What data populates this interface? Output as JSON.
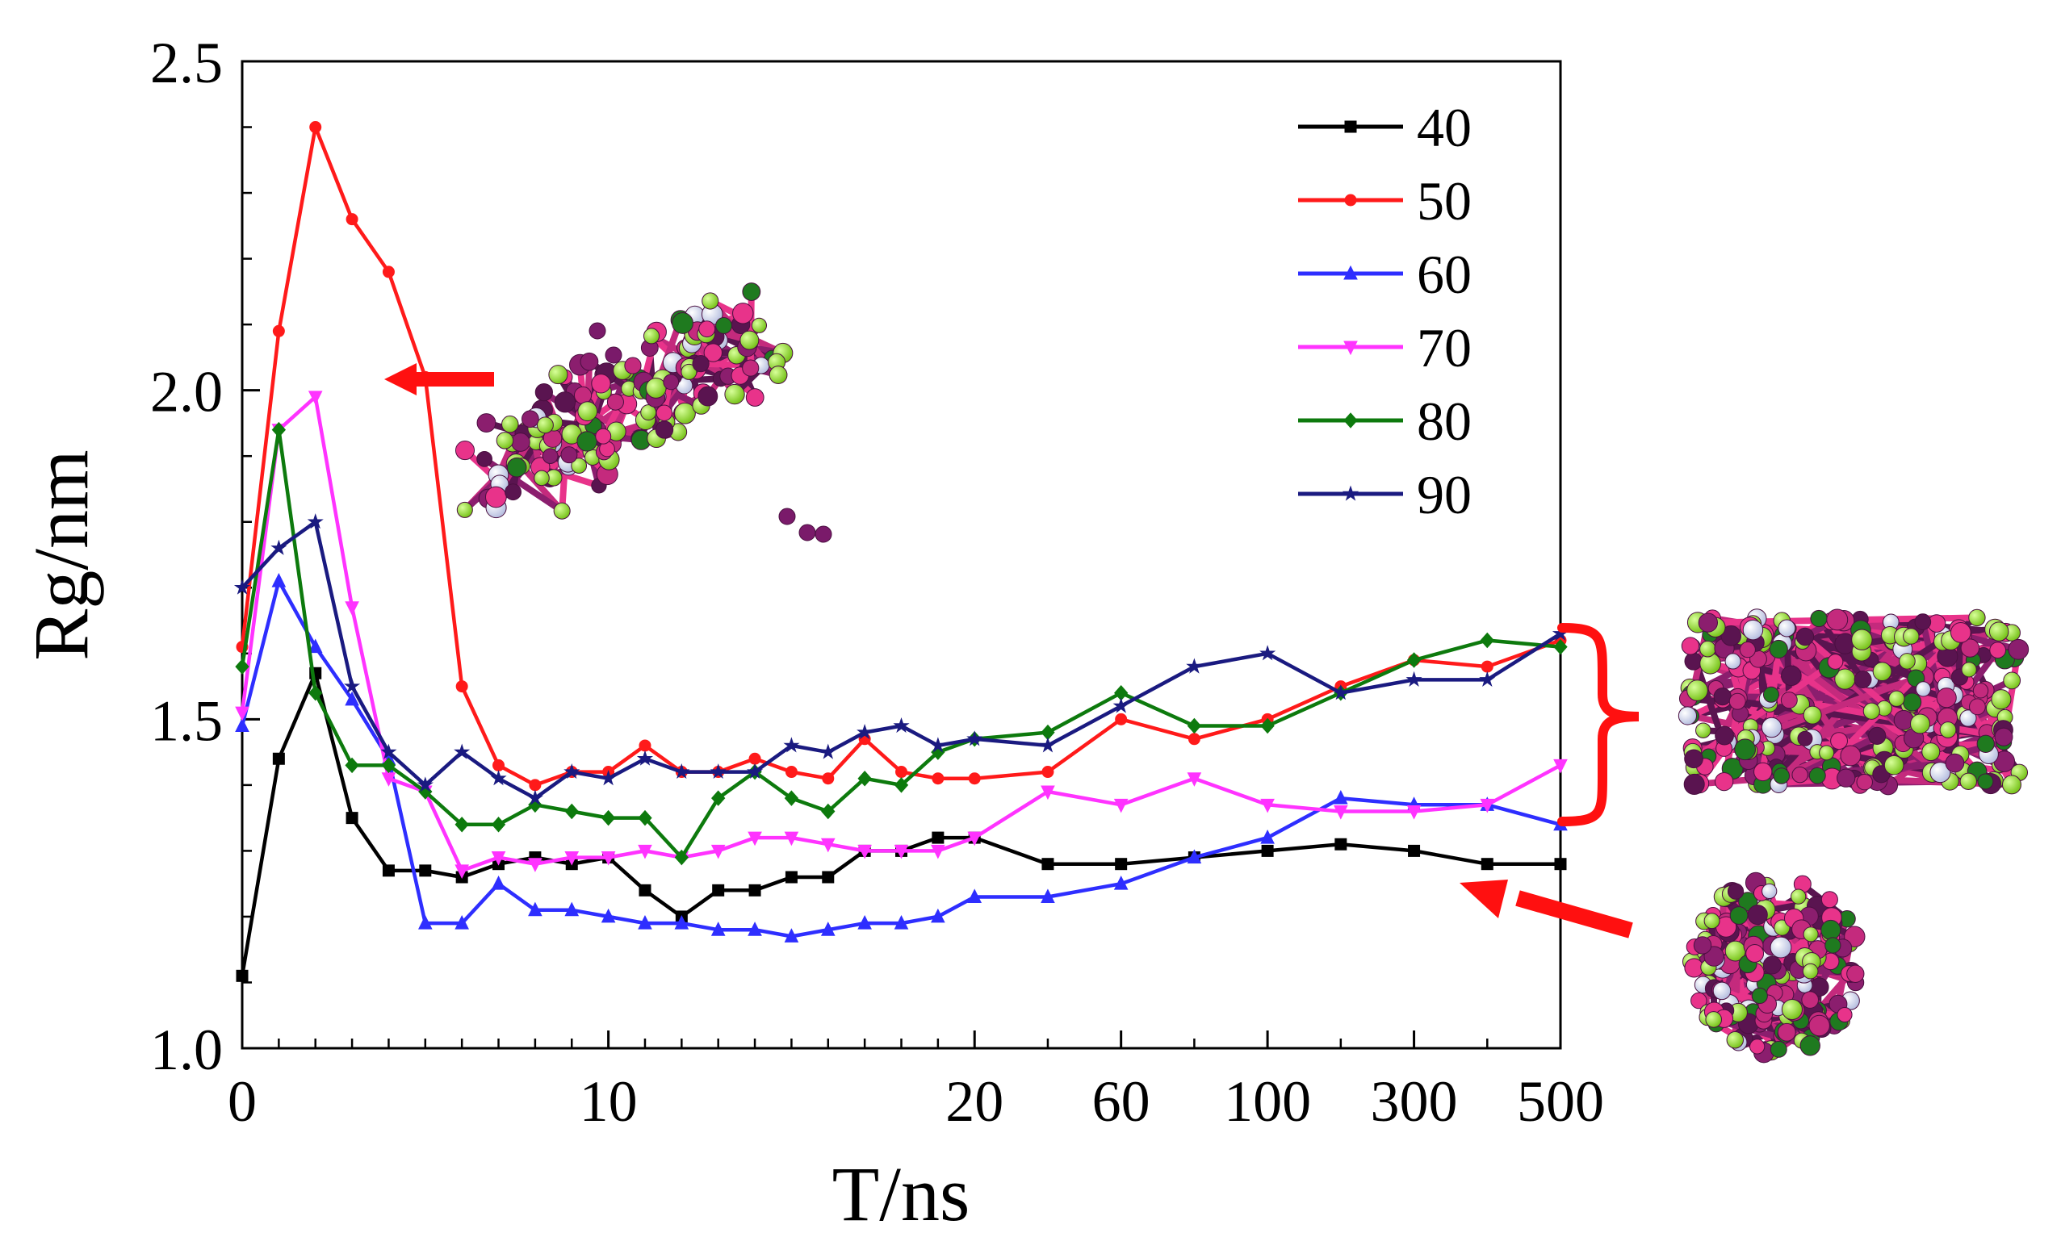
{
  "chart_data": {
    "type": "line",
    "xlabel": "T/ns",
    "ylabel": "Rg/nm",
    "ylim": [
      1.0,
      2.5
    ],
    "yticks": [
      "1.0",
      "1.5",
      "2.0",
      "2.5"
    ],
    "xtick_labels": [
      "0",
      "10",
      "20",
      "60",
      "100",
      "300",
      "500"
    ],
    "x_scale_note": "piecewise axis: 0-20 ns in 1 ns steps, then coarser sampling to 500 ns; positions below are sample indices",
    "xtick_positions": [
      0,
      10,
      20,
      24,
      28,
      32,
      36
    ],
    "legend_position": "top-right",
    "grid": false,
    "x_index": [
      0,
      1,
      2,
      3,
      4,
      5,
      6,
      7,
      8,
      9,
      10,
      11,
      12,
      13,
      14,
      15,
      16,
      17,
      18,
      19,
      20,
      22,
      24,
      26,
      28,
      30,
      32,
      34,
      36
    ],
    "series": [
      {
        "name": "40",
        "color": "#000000",
        "marker": "square",
        "values": [
          1.11,
          1.44,
          1.57,
          1.35,
          1.27,
          1.27,
          1.26,
          1.28,
          1.29,
          1.28,
          1.29,
          1.24,
          1.2,
          1.24,
          1.24,
          1.26,
          1.26,
          1.3,
          1.3,
          1.32,
          1.32,
          1.28,
          1.28,
          1.29,
          1.3,
          1.31,
          1.3,
          1.28,
          1.28
        ]
      },
      {
        "name": "50",
        "color": "#ff1a1a",
        "marker": "circle",
        "values": [
          1.61,
          2.09,
          2.4,
          2.26,
          2.18,
          2.02,
          1.55,
          1.43,
          1.4,
          1.42,
          1.42,
          1.46,
          1.42,
          1.42,
          1.44,
          1.42,
          1.41,
          1.47,
          1.42,
          1.41,
          1.41,
          1.42,
          1.5,
          1.47,
          1.5,
          1.55,
          1.59,
          1.58,
          1.62
        ]
      },
      {
        "name": "60",
        "color": "#2e2eff",
        "marker": "triangle-up",
        "values": [
          1.49,
          1.71,
          1.61,
          1.53,
          1.44,
          1.19,
          1.19,
          1.25,
          1.21,
          1.21,
          1.2,
          1.19,
          1.19,
          1.18,
          1.18,
          1.17,
          1.18,
          1.19,
          1.19,
          1.2,
          1.23,
          1.23,
          1.25,
          1.29,
          1.32,
          1.38,
          1.37,
          1.37,
          1.34
        ]
      },
      {
        "name": "70",
        "color": "#ff33ff",
        "marker": "triangle-down",
        "values": [
          1.51,
          1.94,
          1.99,
          1.67,
          1.41,
          1.39,
          1.27,
          1.29,
          1.28,
          1.29,
          1.29,
          1.3,
          1.29,
          1.3,
          1.32,
          1.32,
          1.31,
          1.3,
          1.3,
          1.3,
          1.32,
          1.39,
          1.37,
          1.41,
          1.37,
          1.36,
          1.36,
          1.37,
          1.43
        ]
      },
      {
        "name": "80",
        "color": "#0d7a0d",
        "marker": "diamond",
        "values": [
          1.58,
          1.94,
          1.54,
          1.43,
          1.43,
          1.39,
          1.34,
          1.34,
          1.37,
          1.36,
          1.35,
          1.35,
          1.29,
          1.38,
          1.42,
          1.38,
          1.36,
          1.41,
          1.4,
          1.45,
          1.47,
          1.48,
          1.54,
          1.49,
          1.49,
          1.54,
          1.59,
          1.62,
          1.61
        ]
      },
      {
        "name": "90",
        "color": "#1a1a80",
        "marker": "star",
        "values": [
          1.7,
          1.76,
          1.8,
          1.55,
          1.45,
          1.4,
          1.45,
          1.41,
          1.38,
          1.42,
          1.41,
          1.44,
          1.42,
          1.42,
          1.42,
          1.46,
          1.45,
          1.48,
          1.49,
          1.46,
          1.47,
          1.46,
          1.52,
          1.58,
          1.6,
          1.54,
          1.56,
          1.56,
          1.63
        ]
      }
    ]
  }
}
